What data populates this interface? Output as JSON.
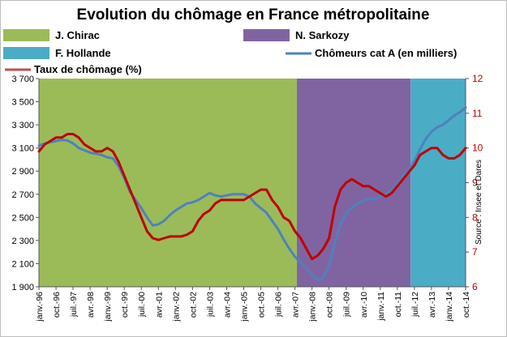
{
  "chart_data": {
    "type": "line",
    "title": "Evolution du chômage en France métropolitaine",
    "source": "Source : Insee et Dares",
    "legend": [
      {
        "label": "J. Chirac",
        "kind": "period",
        "color": "#9bbb59"
      },
      {
        "label": "N. Sarkozy",
        "kind": "period",
        "color": "#8064a2"
      },
      {
        "label": "F. Hollande",
        "kind": "period",
        "color": "#4bacc6"
      },
      {
        "label": "Chômeurs cat A (en milliers)",
        "kind": "line",
        "color": "#4f81bd"
      },
      {
        "label": "Taux de chômage (%)",
        "kind": "line",
        "color": "#c0504d"
      }
    ],
    "periods": [
      {
        "name": "J. Chirac",
        "start": "1996-01",
        "end": "2007-05",
        "color": "#9bbb59"
      },
      {
        "name": "N. Sarkozy",
        "start": "2007-05",
        "end": "2012-05",
        "color": "#8064a2"
      },
      {
        "name": "F. Hollande",
        "start": "2012-05",
        "end": "2014-10",
        "color": "#4bacc6"
      }
    ],
    "x_tick_labels": [
      "janv.-96",
      "oct.-96",
      "juil.-97",
      "avr.-98",
      "janv.-99",
      "oct.-99",
      "juil.-00",
      "avr.-01",
      "janv.-02",
      "oct.-02",
      "juil.-03",
      "avr.-04",
      "janv.-05",
      "oct.-05",
      "juil.-06",
      "avr.-07",
      "janv.-08",
      "oct.-08",
      "juil.-09",
      "avr.-10",
      "janv.-11",
      "oct.-11",
      "juil.-12",
      "avr.-13",
      "janv.-14",
      "oct.-14"
    ],
    "y_left": {
      "min": 1900,
      "max": 3700,
      "ticks": [
        "1 900",
        "2 100",
        "2 300",
        "2 500",
        "2 700",
        "2 900",
        "3 100",
        "3 300",
        "3 500",
        "3 700"
      ]
    },
    "y_right": {
      "min": 6,
      "max": 12,
      "ticks": [
        "6",
        "7",
        "8",
        "9",
        "10",
        "11",
        "12"
      ]
    },
    "series": [
      {
        "name": "Chômeurs cat A (en milliers)",
        "axis": "left",
        "color": "#4f81bd",
        "points": [
          [
            "1996-01",
            3120
          ],
          [
            "1996-04",
            3140
          ],
          [
            "1996-07",
            3150
          ],
          [
            "1996-10",
            3160
          ],
          [
            "1997-01",
            3170
          ],
          [
            "1997-04",
            3165
          ],
          [
            "1997-07",
            3140
          ],
          [
            "1997-10",
            3100
          ],
          [
            "1998-01",
            3080
          ],
          [
            "1998-04",
            3060
          ],
          [
            "1998-07",
            3050
          ],
          [
            "1998-10",
            3040
          ],
          [
            "1999-01",
            3020
          ],
          [
            "1999-04",
            3010
          ],
          [
            "1999-07",
            2940
          ],
          [
            "1999-10",
            2840
          ],
          [
            "2000-01",
            2720
          ],
          [
            "2000-04",
            2650
          ],
          [
            "2000-07",
            2580
          ],
          [
            "2000-10",
            2500
          ],
          [
            "2001-01",
            2430
          ],
          [
            "2001-04",
            2440
          ],
          [
            "2001-07",
            2470
          ],
          [
            "2001-10",
            2520
          ],
          [
            "2002-01",
            2560
          ],
          [
            "2002-04",
            2590
          ],
          [
            "2002-07",
            2620
          ],
          [
            "2002-10",
            2630
          ],
          [
            "2003-01",
            2650
          ],
          [
            "2003-04",
            2680
          ],
          [
            "2003-07",
            2710
          ],
          [
            "2003-10",
            2690
          ],
          [
            "2004-01",
            2680
          ],
          [
            "2004-04",
            2690
          ],
          [
            "2004-07",
            2700
          ],
          [
            "2004-10",
            2700
          ],
          [
            "2005-01",
            2700
          ],
          [
            "2005-04",
            2680
          ],
          [
            "2005-07",
            2620
          ],
          [
            "2005-10",
            2580
          ],
          [
            "2006-01",
            2540
          ],
          [
            "2006-04",
            2470
          ],
          [
            "2006-07",
            2400
          ],
          [
            "2006-10",
            2310
          ],
          [
            "2007-01",
            2230
          ],
          [
            "2007-04",
            2160
          ],
          [
            "2007-07",
            2110
          ],
          [
            "2007-10",
            2060
          ],
          [
            "2008-01",
            2000
          ],
          [
            "2008-04",
            1960
          ],
          [
            "2008-07",
            1980
          ],
          [
            "2008-10",
            2080
          ],
          [
            "2009-01",
            2280
          ],
          [
            "2009-04",
            2440
          ],
          [
            "2009-07",
            2540
          ],
          [
            "2009-10",
            2580
          ],
          [
            "2010-01",
            2620
          ],
          [
            "2010-04",
            2640
          ],
          [
            "2010-07",
            2660
          ],
          [
            "2010-10",
            2660
          ],
          [
            "2011-01",
            2680
          ],
          [
            "2011-04",
            2700
          ],
          [
            "2011-07",
            2740
          ],
          [
            "2011-10",
            2790
          ],
          [
            "2012-01",
            2860
          ],
          [
            "2012-04",
            2910
          ],
          [
            "2012-07",
            2990
          ],
          [
            "2012-10",
            3090
          ],
          [
            "2013-01",
            3180
          ],
          [
            "2013-04",
            3240
          ],
          [
            "2013-07",
            3280
          ],
          [
            "2013-10",
            3300
          ],
          [
            "2014-01",
            3340
          ],
          [
            "2014-04",
            3380
          ],
          [
            "2014-07",
            3410
          ],
          [
            "2014-10",
            3450
          ]
        ]
      },
      {
        "name": "Taux de chômage (%)",
        "axis": "right",
        "color": "#c00000",
        "points": [
          [
            "1996-01",
            9.9
          ],
          [
            "1996-04",
            10.1
          ],
          [
            "1996-07",
            10.2
          ],
          [
            "1996-10",
            10.3
          ],
          [
            "1997-01",
            10.3
          ],
          [
            "1997-04",
            10.4
          ],
          [
            "1997-07",
            10.4
          ],
          [
            "1997-10",
            10.3
          ],
          [
            "1998-01",
            10.1
          ],
          [
            "1998-04",
            10.0
          ],
          [
            "1998-07",
            9.9
          ],
          [
            "1998-10",
            9.9
          ],
          [
            "1999-01",
            10.0
          ],
          [
            "1999-04",
            9.9
          ],
          [
            "1999-07",
            9.6
          ],
          [
            "1999-10",
            9.2
          ],
          [
            "2000-01",
            8.8
          ],
          [
            "2000-04",
            8.4
          ],
          [
            "2000-07",
            8.0
          ],
          [
            "2000-10",
            7.6
          ],
          [
            "2001-01",
            7.4
          ],
          [
            "2001-04",
            7.35
          ],
          [
            "2001-07",
            7.4
          ],
          [
            "2001-10",
            7.45
          ],
          [
            "2002-01",
            7.45
          ],
          [
            "2002-04",
            7.45
          ],
          [
            "2002-07",
            7.5
          ],
          [
            "2002-10",
            7.6
          ],
          [
            "2003-01",
            7.9
          ],
          [
            "2003-04",
            8.1
          ],
          [
            "2003-07",
            8.2
          ],
          [
            "2003-10",
            8.4
          ],
          [
            "2004-01",
            8.5
          ],
          [
            "2004-04",
            8.5
          ],
          [
            "2004-07",
            8.5
          ],
          [
            "2004-10",
            8.5
          ],
          [
            "2005-01",
            8.5
          ],
          [
            "2005-04",
            8.6
          ],
          [
            "2005-07",
            8.7
          ],
          [
            "2005-10",
            8.8
          ],
          [
            "2006-01",
            8.8
          ],
          [
            "2006-04",
            8.5
          ],
          [
            "2006-07",
            8.3
          ],
          [
            "2006-10",
            8.0
          ],
          [
            "2007-01",
            7.9
          ],
          [
            "2007-04",
            7.6
          ],
          [
            "2007-07",
            7.4
          ],
          [
            "2007-10",
            7.1
          ],
          [
            "2008-01",
            6.8
          ],
          [
            "2008-04",
            6.9
          ],
          [
            "2008-07",
            7.1
          ],
          [
            "2008-10",
            7.4
          ],
          [
            "2009-01",
            8.3
          ],
          [
            "2009-04",
            8.8
          ],
          [
            "2009-07",
            9.0
          ],
          [
            "2009-10",
            9.1
          ],
          [
            "2010-01",
            9.0
          ],
          [
            "2010-04",
            8.9
          ],
          [
            "2010-07",
            8.9
          ],
          [
            "2010-10",
            8.8
          ],
          [
            "2011-01",
            8.7
          ],
          [
            "2011-04",
            8.6
          ],
          [
            "2011-07",
            8.7
          ],
          [
            "2011-10",
            8.9
          ],
          [
            "2012-01",
            9.1
          ],
          [
            "2012-04",
            9.3
          ],
          [
            "2012-07",
            9.5
          ],
          [
            "2012-10",
            9.8
          ],
          [
            "2013-01",
            9.9
          ],
          [
            "2013-04",
            10.0
          ],
          [
            "2013-07",
            10.0
          ],
          [
            "2013-10",
            9.8
          ],
          [
            "2014-01",
            9.7
          ],
          [
            "2014-04",
            9.7
          ],
          [
            "2014-07",
            9.8
          ],
          [
            "2014-10",
            10.0
          ]
        ]
      }
    ]
  }
}
